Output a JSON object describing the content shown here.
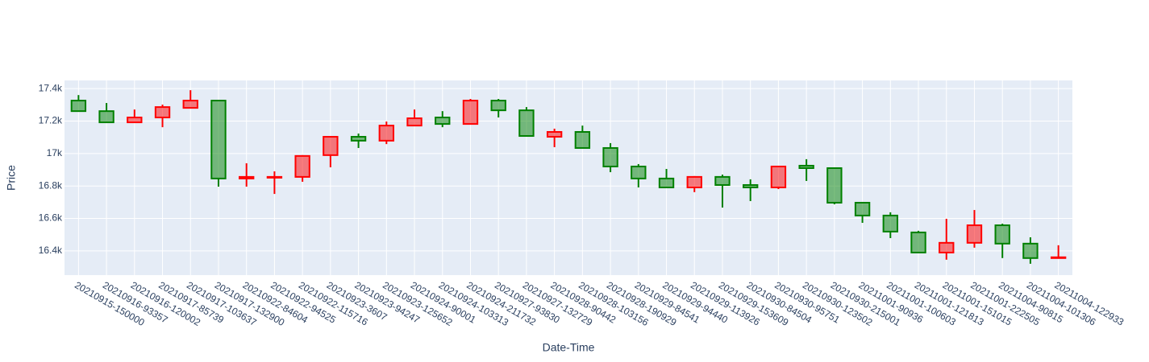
{
  "chart_data": {
    "type": "candlestick",
    "x_label": "Date-Time",
    "y_label": "Price",
    "categories": [
      "20210915-150000",
      "20210916-93357",
      "20210916-120002",
      "20210917-85739",
      "20210917-103637",
      "20210917-132900",
      "20210922-84604",
      "20210922-94525",
      "20210922-115716",
      "20210923-3607",
      "20210923-94247",
      "20210923-125652",
      "20210924-90001",
      "20210924-103313",
      "20210924-211732",
      "20210927-93830",
      "20210927-132729",
      "20210928-90442",
      "20210928-103156",
      "20210928-190929",
      "20210929-84541",
      "20210929-94440",
      "20210929-113926",
      "20210929-153609",
      "20210930-84504",
      "20210930-95751",
      "20210930-123502",
      "20210930-215001",
      "20211001-90936",
      "20211001-100603",
      "20211001-121813",
      "20211001-151015",
      "20211001-222505",
      "20211004-90815",
      "20211004-101306",
      "20211004-122933"
    ],
    "open": [
      17261,
      17192,
      17222,
      17286,
      17326,
      16846,
      16856,
      16856,
      16985,
      17103,
      17079,
      17172,
      17217,
      17182,
      17326,
      17266,
      17108,
      17133,
      17034,
      16920,
      16846,
      16791,
      16856,
      16806,
      16791,
      16920,
      16910,
      16697,
      16618,
      16519,
      16390,
      16450,
      16558,
      16445,
      16356,
      16361
    ],
    "high": [
      17360,
      17311,
      17271,
      17301,
      17390,
      17326,
      16940,
      16890,
      16990,
      17103,
      17123,
      17197,
      17271,
      17261,
      17336,
      17336,
      17286,
      17153,
      17172,
      17064,
      16935,
      16905,
      16861,
      16870,
      16841,
      16920,
      16965,
      16910,
      16702,
      16638,
      16524,
      16598,
      16652,
      16568,
      16484,
      16435
    ],
    "low": [
      17261,
      17192,
      17192,
      17162,
      17281,
      16796,
      16796,
      16751,
      16826,
      16915,
      17034,
      17058,
      17172,
      17162,
      17182,
      17222,
      17108,
      17039,
      17034,
      16885,
      16791,
      16791,
      16762,
      16667,
      16707,
      16781,
      16831,
      16687,
      16573,
      16479,
      16390,
      16346,
      16420,
      16356,
      16321,
      16356
    ],
    "close": [
      17326,
      17261,
      17192,
      17222,
      17281,
      17326,
      16846,
      16851,
      16856,
      16990,
      17103,
      17079,
      17172,
      17222,
      17182,
      17326,
      17266,
      17103,
      17133,
      17034,
      16920,
      16846,
      16791,
      16856,
      16806,
      16791,
      16925,
      16910,
      16697,
      16618,
      16514,
      16390,
      16450,
      16558,
      16445,
      16356
    ],
    "increasing_color": "green",
    "decreasing_color": "red",
    "ylim": [
      16251,
      17450
    ],
    "yticks": [
      {
        "value": 16400,
        "label": "16.4k"
      },
      {
        "value": 16600,
        "label": "16.6k"
      },
      {
        "value": 16800,
        "label": "16.8k"
      },
      {
        "value": 17000,
        "label": "17k"
      },
      {
        "value": 17200,
        "label": "17.2k"
      },
      {
        "value": 17400,
        "label": "17.4k"
      }
    ],
    "grid": true
  }
}
